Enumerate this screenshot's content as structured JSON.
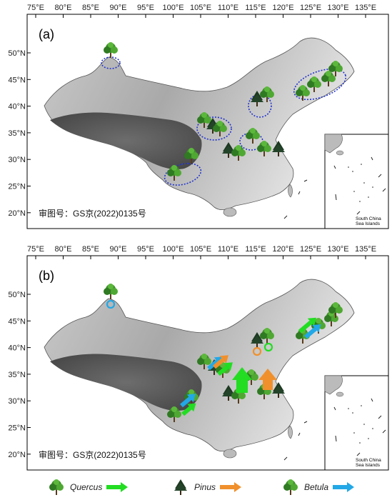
{
  "colors": {
    "quercus_arrow": "#22dd22",
    "pinus_arrow": "#f0902c",
    "betula_arrow": "#22a8e6",
    "highlight_ring": "#2233cc",
    "tree_green": "#3d8c2a",
    "tree_dark": "#1d3a22"
  },
  "lon_ticks": [
    "75°E",
    "80°E",
    "85°E",
    "90°E",
    "95°E",
    "100°E",
    "105°E",
    "110°E",
    "115°E",
    "120°E",
    "125°E",
    "130°E",
    "135°E"
  ],
  "lat_ticks": [
    "50°N",
    "45°N",
    "40°N",
    "35°N",
    "30°N",
    "25°N",
    "20°N"
  ],
  "panel_a": {
    "label": "(a)",
    "approval_number": "审图号：GS京(2022)0135号",
    "inset_caption_line1": "South China",
    "inset_caption_line2": "Sea Islands"
  },
  "panel_b": {
    "label": "(b)",
    "approval_number": "审图号：GS京(2022)0135号",
    "inset_caption_line1": "South China",
    "inset_caption_line2": "Sea Islands"
  },
  "legend": {
    "quercus": "Quercus",
    "pinus": "Pinus",
    "betula": "Betula"
  }
}
